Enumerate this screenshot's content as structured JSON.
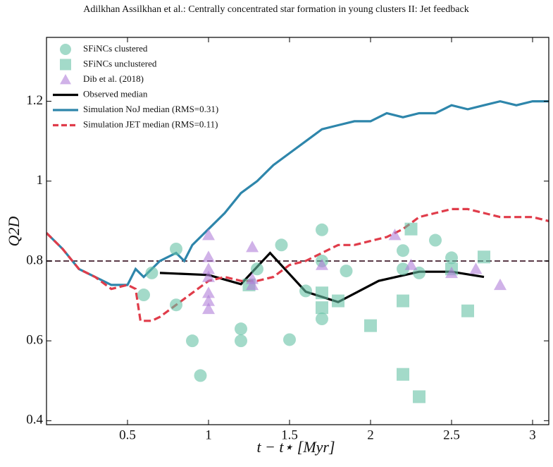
{
  "chart_data": {
    "type": "scatter",
    "title": "Adilkhan Assilkhan et al.: Centrally concentrated star formation in young clusters II: Jet feedback",
    "xlabel": "t − t⋆ [Myr]",
    "ylabel": "Q2D",
    "xlim": [
      0,
      3.1
    ],
    "ylim": [
      0.39,
      1.36
    ],
    "xticks": [
      0.5,
      1,
      1.5,
      2,
      2.5,
      3
    ],
    "yticks": [
      0.4,
      0.6,
      0.8,
      1,
      1.2
    ],
    "hline": 0.8,
    "legend": "upper left",
    "series": [
      {
        "name": "SFiNCs clustered",
        "color": "#66c2a5",
        "marker": "circle",
        "x": [
          0.6,
          0.65,
          0.8,
          0.8,
          0.9,
          0.95,
          1.2,
          1.2,
          1.3,
          1.45,
          1.5,
          1.6,
          1.7,
          1.7,
          1.7,
          1.85,
          2.2,
          2.2,
          2.3,
          2.4,
          2.5
        ],
        "values": [
          0.715,
          0.77,
          0.83,
          0.69,
          0.6,
          0.513,
          0.63,
          0.6,
          0.78,
          0.84,
          0.603,
          0.725,
          0.878,
          0.655,
          0.8,
          0.775,
          0.826,
          0.78,
          0.77,
          0.852,
          0.808
        ]
      },
      {
        "name": "SFiNCs unclustered",
        "color": "#66c2a5",
        "marker": "square",
        "x": [
          1.25,
          1.7,
          1.7,
          1.8,
          2.0,
          2.2,
          2.2,
          2.25,
          2.3,
          2.5,
          2.6,
          2.7
        ],
        "values": [
          0.74,
          0.72,
          0.683,
          0.7,
          0.638,
          0.7,
          0.516,
          0.88,
          0.46,
          0.78,
          0.675,
          0.81
        ]
      },
      {
        "name": "Dib et al. (2018)",
        "color": "#b07fd9",
        "marker": "triangle",
        "x": [
          1.0,
          1.0,
          1.0,
          1.0,
          1.0,
          1.0,
          1.0,
          1.27,
          1.27,
          1.27,
          1.7,
          2.15,
          2.25,
          2.5,
          2.65,
          2.8
        ],
        "values": [
          0.865,
          0.81,
          0.78,
          0.76,
          0.72,
          0.7,
          0.68,
          0.835,
          0.755,
          0.74,
          0.79,
          0.865,
          0.79,
          0.77,
          0.78,
          0.74
        ]
      },
      {
        "name": "Observed median",
        "color": "#000000",
        "marker": "line",
        "dashed": false,
        "x": [
          0.7,
          1.0,
          1.2,
          1.38,
          1.6,
          1.8,
          2.05,
          2.3,
          2.5,
          2.7
        ],
        "values": [
          0.77,
          0.765,
          0.742,
          0.82,
          0.723,
          0.697,
          0.75,
          0.773,
          0.773,
          0.76
        ]
      },
      {
        "name": "Simulation NoJ median (RMS=0.31)",
        "color": "#2e86ab",
        "marker": "line",
        "dashed": false,
        "x": [
          0,
          0.1,
          0.2,
          0.3,
          0.4,
          0.5,
          0.55,
          0.6,
          0.7,
          0.8,
          0.85,
          0.9,
          1.0,
          1.1,
          1.2,
          1.3,
          1.4,
          1.5,
          1.6,
          1.7,
          1.8,
          1.9,
          2.0,
          2.1,
          2.2,
          2.3,
          2.4,
          2.5,
          2.6,
          2.7,
          2.8,
          2.9,
          3.0,
          3.1
        ],
        "values": [
          0.87,
          0.83,
          0.78,
          0.76,
          0.74,
          0.74,
          0.78,
          0.76,
          0.8,
          0.82,
          0.8,
          0.84,
          0.88,
          0.92,
          0.97,
          1.0,
          1.04,
          1.07,
          1.1,
          1.13,
          1.14,
          1.15,
          1.15,
          1.17,
          1.16,
          1.17,
          1.17,
          1.19,
          1.18,
          1.19,
          1.2,
          1.19,
          1.2,
          1.2
        ]
      },
      {
        "name": "Simulation JET median (RMS=0.11)",
        "color": "#e03c4a",
        "marker": "line",
        "dashed": true,
        "x": [
          0,
          0.1,
          0.2,
          0.3,
          0.4,
          0.5,
          0.55,
          0.58,
          0.65,
          0.7,
          0.8,
          0.9,
          1.0,
          1.1,
          1.2,
          1.3,
          1.4,
          1.5,
          1.6,
          1.7,
          1.8,
          1.9,
          2.0,
          2.1,
          2.2,
          2.3,
          2.4,
          2.5,
          2.6,
          2.7,
          2.8,
          2.9,
          3.0,
          3.1
        ],
        "values": [
          0.87,
          0.83,
          0.78,
          0.76,
          0.73,
          0.74,
          0.73,
          0.65,
          0.65,
          0.66,
          0.69,
          0.72,
          0.75,
          0.76,
          0.75,
          0.75,
          0.76,
          0.79,
          0.8,
          0.82,
          0.84,
          0.84,
          0.85,
          0.86,
          0.88,
          0.91,
          0.92,
          0.93,
          0.93,
          0.92,
          0.91,
          0.91,
          0.91,
          0.9
        ]
      }
    ]
  }
}
